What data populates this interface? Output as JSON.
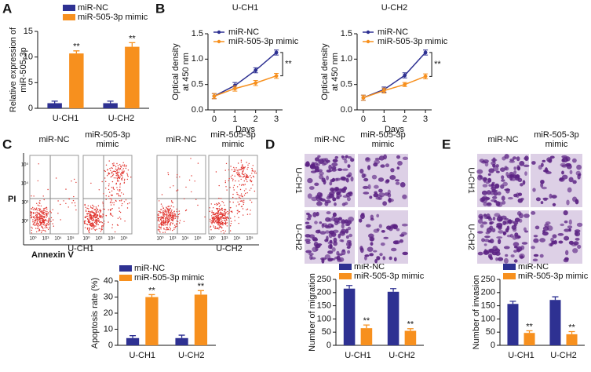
{
  "panel_labels": [
    "A",
    "B",
    "C",
    "D",
    "E"
  ],
  "chart_data": [
    {
      "type": "bar",
      "ylabel": [
        "Relative expression of",
        "miR-505-3p"
      ],
      "categories": [
        "U-CH1",
        "U-CH2"
      ],
      "series": [
        {
          "name": "miR-NC",
          "color": "#2e3192",
          "values": [
            1,
            1
          ],
          "errors": [
            0.4,
            0.4
          ]
        },
        {
          "name": "miR-505-3p mimic",
          "color": "#f7901e",
          "values": [
            10.7,
            12
          ],
          "errors": [
            0.5,
            0.8
          ],
          "significance": [
            "**",
            "**"
          ]
        }
      ],
      "ylim": [
        0,
        15
      ],
      "yticks": [
        0,
        5,
        10,
        15
      ]
    },
    {
      "type": "line",
      "title": "U-CH1",
      "ylabel": [
        "Optical density",
        "at 450 nm"
      ],
      "xlabel": "Days",
      "x": [
        0,
        1,
        2,
        3
      ],
      "series": [
        {
          "name": "miR-NC",
          "color": "#2e3192",
          "values": [
            0.27,
            0.48,
            0.78,
            1.13
          ],
          "errors": [
            0.05,
            0.06,
            0.05,
            0.05
          ]
        },
        {
          "name": "miR-505-3p mimic",
          "color": "#f7901e",
          "values": [
            0.27,
            0.42,
            0.53,
            0.67
          ],
          "errors": [
            0.05,
            0.05,
            0.05,
            0.05
          ]
        }
      ],
      "annotation": "**",
      "xlim": [
        -0.3,
        3.3
      ],
      "xticks": [
        0,
        1,
        2,
        3
      ],
      "ylim": [
        0,
        1.5
      ],
      "yticks": [
        {
          "value": 0,
          "label": "0.0"
        },
        0.5,
        {
          "value": 1,
          "label": "1.0"
        },
        1.5
      ]
    },
    {
      "type": "line",
      "title": "U-CH2",
      "ylabel": [
        "Optical density",
        "at 450 nm"
      ],
      "xlabel": "Days",
      "x": [
        0,
        1,
        2,
        3
      ],
      "series": [
        {
          "name": "miR-NC",
          "color": "#2e3192",
          "values": [
            0.24,
            0.4,
            0.68,
            1.13
          ],
          "errors": [
            0.05,
            0.05,
            0.05,
            0.05
          ]
        },
        {
          "name": "miR-505-3p mimic",
          "color": "#f7901e",
          "values": [
            0.24,
            0.38,
            0.5,
            0.66
          ],
          "errors": [
            0.05,
            0.05,
            0.04,
            0.05
          ]
        }
      ],
      "annotation": "**",
      "xlim": [
        -0.3,
        3.3
      ],
      "xticks": [
        0,
        1,
        2,
        3
      ],
      "ylim": [
        0,
        1.5
      ],
      "yticks": [
        {
          "value": 0,
          "label": "0.0"
        },
        0.5,
        {
          "value": 1,
          "label": "1.0"
        },
        1.5
      ]
    },
    {
      "type": "bar",
      "ylabel": "Apoptosis rate (%)",
      "categories": [
        "U-CH1",
        "U-CH2"
      ],
      "series": [
        {
          "name": "miR-NC",
          "color": "#2e3192",
          "values": [
            4.5,
            4.5
          ],
          "errors": [
            1.5,
            1.8
          ]
        },
        {
          "name": "miR-505-3p mimic",
          "color": "#f7901e",
          "values": [
            30,
            31.5
          ],
          "errors": [
            1.5,
            2.5
          ],
          "significance": [
            "**",
            "**"
          ]
        }
      ],
      "ylim": [
        0,
        40
      ],
      "yticks": [
        0,
        10,
        20,
        30,
        40
      ]
    },
    {
      "type": "bar",
      "ylabel": "Number of migration",
      "categories": [
        "U-CH1",
        "U-CH2"
      ],
      "series": [
        {
          "name": "miR-NC",
          "color": "#2e3192",
          "values": [
            215,
            203
          ],
          "errors": [
            12,
            12
          ]
        },
        {
          "name": "miR-505-3p mimic",
          "color": "#f7901e",
          "values": [
            65,
            55
          ],
          "errors": [
            12,
            8
          ],
          "significance": [
            "**",
            "**"
          ]
        }
      ],
      "ylim": [
        0,
        250
      ],
      "yticks": [
        0,
        50,
        100,
        150,
        200,
        250
      ]
    },
    {
      "type": "bar",
      "ylabel": "Number of invasion",
      "categories": [
        "U-CH1",
        "U-CH2"
      ],
      "series": [
        {
          "name": "miR-NC",
          "color": "#2e3192",
          "values": [
            157,
            172
          ],
          "errors": [
            10,
            12
          ]
        },
        {
          "name": "miR-505-3p mimic",
          "color": "#f7901e",
          "values": [
            47,
            42
          ],
          "errors": [
            8,
            10
          ],
          "significance": [
            "**",
            "**"
          ]
        }
      ],
      "ylim": [
        0,
        250
      ],
      "yticks": [
        0,
        50,
        100,
        150,
        200,
        250
      ]
    }
  ],
  "flow": {
    "columns": [
      [
        "miR-NC"
      ],
      [
        "miR-505-3p",
        "mimic"
      ],
      [
        "miR-NC"
      ],
      [
        "miR-505-3p",
        "mimic"
      ]
    ],
    "groups": [
      "U-CH1",
      "U-CH2"
    ],
    "ylabel": "PI",
    "xlabel": "Annexin V",
    "xtick_labels": [
      "10⁰",
      "10³",
      "10⁴",
      "10⁵"
    ],
    "ytick_labels": [
      "10⁵",
      "10⁴",
      "10³",
      "10²"
    ]
  },
  "migration": {
    "columns": [
      [
        "miR-NC"
      ],
      [
        "miR-505-3p",
        "mimic"
      ]
    ],
    "rows": [
      "U-CH1",
      "U-CH2"
    ]
  },
  "invasion": {
    "columns": [
      [
        "miR-NC"
      ],
      [
        "miR-505-3p",
        "mimic"
      ]
    ],
    "rows": [
      "U-CH1",
      "U-CH2"
    ]
  }
}
